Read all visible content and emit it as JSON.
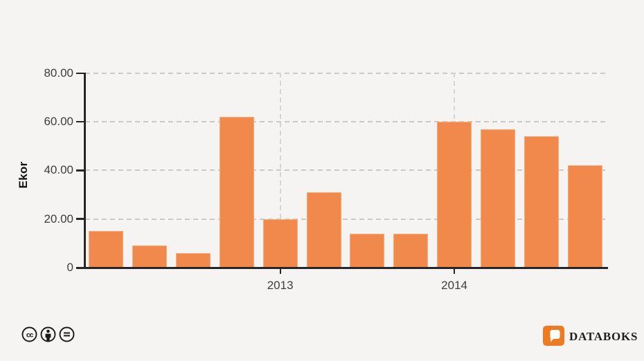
{
  "chart_data": {
    "type": "bar",
    "title": "",
    "ylabel": "Ekor",
    "ylim": [
      0,
      80
    ],
    "y_ticks": [
      {
        "value": 80,
        "label": "80.00"
      },
      {
        "value": 60,
        "label": "60.00"
      },
      {
        "value": 40,
        "label": "40.00"
      },
      {
        "value": 20,
        "label": "20.00"
      },
      {
        "value": 0,
        "label": "0"
      }
    ],
    "x_ticks": [
      {
        "label": "2013",
        "bar_index": 4
      },
      {
        "label": "2014",
        "bar_index": 8
      }
    ],
    "values": [
      15,
      9,
      6,
      62,
      20,
      31,
      14,
      14,
      60,
      57,
      54,
      42
    ],
    "bar_color": "#f1894c",
    "bar_edge_color": "#f6ab79",
    "grid": {
      "horizontal": "dashed",
      "vertical_at_year_ticks": "dashed"
    },
    "legend": "none"
  },
  "footer": {
    "license_icons": [
      "cc-icon",
      "attribution-icon",
      "no-derivatives-icon"
    ],
    "brand": {
      "name": "DATABOKS",
      "logo_color": "#ee7b23"
    }
  },
  "colors": {
    "background": "#f5f4f2",
    "axis": "#262626",
    "grid_horizontal": "#cbc9c6",
    "grid_vertical": "#d7d5d2",
    "tick_label": "#3d3d3d"
  }
}
